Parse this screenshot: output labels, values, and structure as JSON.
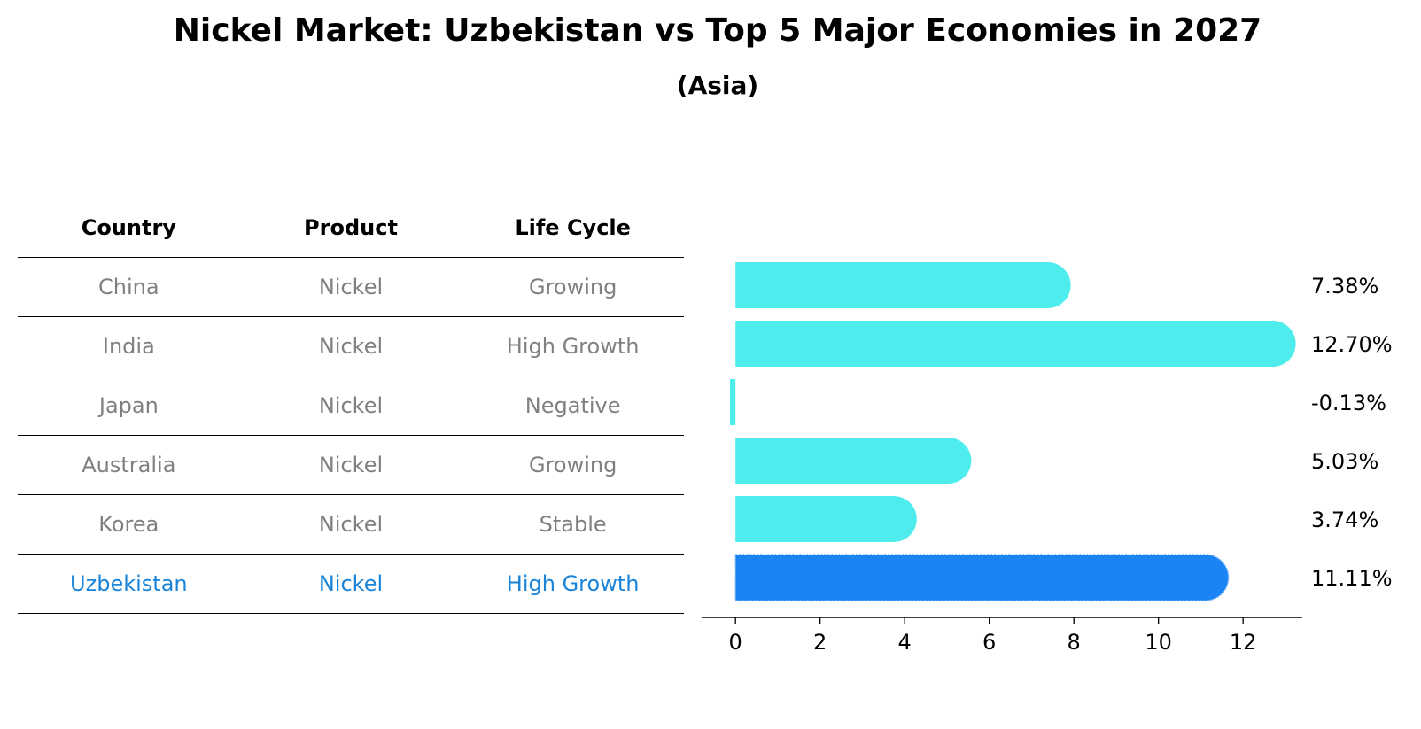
{
  "title": "Nickel Market: Uzbekistan vs Top 5 Major Economies in 2027",
  "subtitle": "(Asia)",
  "table": {
    "headers": [
      "Country",
      "Product",
      "Life Cycle"
    ],
    "rows": [
      [
        "China",
        "Nickel",
        "Growing"
      ],
      [
        "India",
        "Nickel",
        "High Growth"
      ],
      [
        "Japan",
        "Nickel",
        "Negative"
      ],
      [
        "Australia",
        "Nickel",
        "Growing"
      ],
      [
        "Korea",
        "Nickel",
        "Stable"
      ],
      [
        "Uzbekistan",
        "Nickel",
        "High Growth"
      ]
    ]
  },
  "colors": {
    "bar": "#4eecec",
    "highlight": "#1a84f4",
    "table_text": "#808080",
    "highlight_text": "#1a84d8"
  },
  "chart_data": {
    "type": "bar",
    "orientation": "horizontal",
    "categories": [
      "China",
      "India",
      "Japan",
      "Australia",
      "Korea",
      "Uzbekistan"
    ],
    "values": [
      7.38,
      12.7,
      -0.13,
      5.03,
      3.74,
      11.11
    ],
    "value_labels": [
      "7.38%",
      "12.70%",
      "-0.13%",
      "5.03%",
      "3.74%",
      "11.11%"
    ],
    "highlight": "Uzbekistan",
    "xlim": [
      -0.8,
      13.4
    ],
    "xticks": [
      0,
      2,
      4,
      6,
      8,
      10,
      12
    ],
    "xtick_labels": [
      "0",
      "2",
      "4",
      "6",
      "8",
      "10",
      "12"
    ],
    "grid": false
  }
}
